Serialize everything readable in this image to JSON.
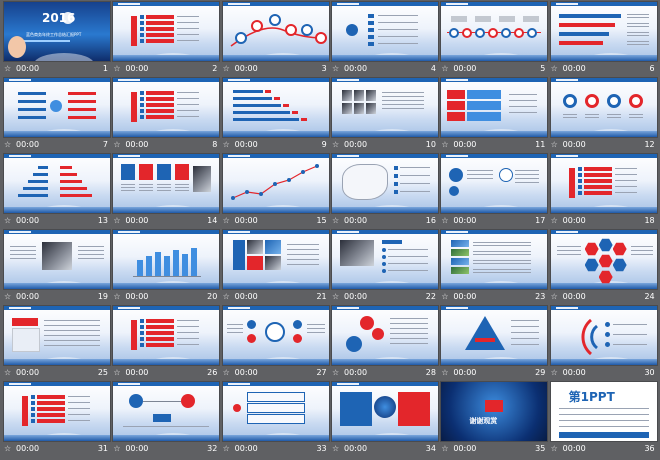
{
  "slides": [
    {
      "num": "1",
      "time": "00:00",
      "kind": "cover",
      "title": "2016",
      "subtitle": "蓝色商务年终工作总结汇报PPT"
    },
    {
      "num": "2",
      "time": "00:00",
      "kind": "list"
    },
    {
      "num": "3",
      "time": "00:00",
      "kind": "curve-circles"
    },
    {
      "num": "4",
      "time": "00:00",
      "kind": "tree"
    },
    {
      "num": "5",
      "time": "00:00",
      "kind": "timeline"
    },
    {
      "num": "6",
      "time": "00:00",
      "kind": "bars-right"
    },
    {
      "num": "7",
      "time": "00:00",
      "kind": "split"
    },
    {
      "num": "8",
      "time": "00:00",
      "kind": "list"
    },
    {
      "num": "9",
      "time": "00:00",
      "kind": "hbars"
    },
    {
      "num": "10",
      "time": "00:00",
      "kind": "photos-grid"
    },
    {
      "num": "11",
      "time": "00:00",
      "kind": "arrows"
    },
    {
      "num": "12",
      "time": "00:00",
      "kind": "donuts"
    },
    {
      "num": "13",
      "time": "00:00",
      "kind": "butterfly"
    },
    {
      "num": "14",
      "time": "00:00",
      "kind": "icons"
    },
    {
      "num": "15",
      "time": "00:00",
      "kind": "line"
    },
    {
      "num": "16",
      "time": "00:00",
      "kind": "map"
    },
    {
      "num": "17",
      "time": "00:00",
      "kind": "bubbles"
    },
    {
      "num": "18",
      "time": "00:00",
      "kind": "list"
    },
    {
      "num": "19",
      "time": "00:00",
      "kind": "photo-center"
    },
    {
      "num": "20",
      "time": "00:00",
      "kind": "columns"
    },
    {
      "num": "21",
      "time": "00:00",
      "kind": "photo-mosaic"
    },
    {
      "num": "22",
      "time": "00:00",
      "kind": "photo-left"
    },
    {
      "num": "23",
      "time": "00:00",
      "kind": "photo-strip"
    },
    {
      "num": "24",
      "time": "00:00",
      "kind": "hexagons"
    },
    {
      "num": "25",
      "time": "00:00",
      "kind": "banner"
    },
    {
      "num": "26",
      "time": "00:00",
      "kind": "list"
    },
    {
      "num": "27",
      "time": "00:00",
      "kind": "cycle"
    },
    {
      "num": "28",
      "time": "00:00",
      "kind": "red-circles"
    },
    {
      "num": "29",
      "time": "00:00",
      "kind": "pyramid"
    },
    {
      "num": "30",
      "time": "00:00",
      "kind": "arcs"
    },
    {
      "num": "31",
      "time": "00:00",
      "kind": "list"
    },
    {
      "num": "32",
      "time": "00:00",
      "kind": "flow"
    },
    {
      "num": "33",
      "time": "00:00",
      "kind": "frames"
    },
    {
      "num": "34",
      "time": "00:00",
      "kind": "globe"
    },
    {
      "num": "35",
      "time": "00:00",
      "kind": "dark",
      "title": "谢谢观赏"
    },
    {
      "num": "36",
      "time": "00:00",
      "kind": "final",
      "title": "第1PPT"
    }
  ],
  "colors": {
    "accent": "#1e64b4",
    "red": "#e3262b",
    "background": "#5f6063"
  }
}
